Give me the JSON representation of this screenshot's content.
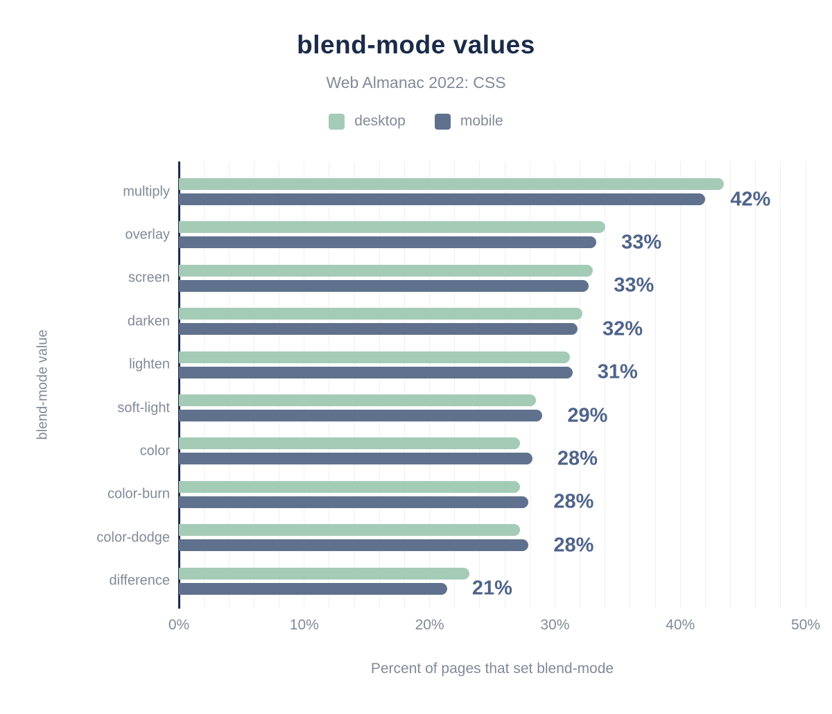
{
  "chart": {
    "title": "blend-mode values",
    "subtitle": "Web Almanac 2022: CSS",
    "x_axis_title": "Percent of pages that set blend-mode",
    "y_axis_title": "blend-mode value"
  },
  "legend": [
    {
      "name": "desktop",
      "color": "#a4cbb6"
    },
    {
      "name": "mobile",
      "color": "#5f718c"
    }
  ],
  "colors": {
    "desktop_bar": "#a4cbb6",
    "mobile_bar": "#5f718c",
    "title_text": "#1a2b49",
    "muted_text": "#828a97",
    "value_label_text": "#4f648a",
    "axis_line": "#1a2b49",
    "gridline": "#efefef",
    "background": "#ffffff"
  },
  "chart_data": {
    "type": "bar",
    "orientation": "horizontal",
    "title": "blend-mode values",
    "subtitle": "Web Almanac 2022: CSS",
    "xlabel": "Percent of pages that set blend-mode",
    "ylabel": "blend-mode value",
    "categories": [
      "multiply",
      "overlay",
      "screen",
      "darken",
      "lighten",
      "soft-light",
      "color",
      "color-burn",
      "color-dodge",
      "difference"
    ],
    "series": [
      {
        "name": "desktop",
        "color": "#a4cbb6",
        "values": [
          43.5,
          34.0,
          33.0,
          32.2,
          31.2,
          28.5,
          27.2,
          27.2,
          27.2,
          23.2
        ]
      },
      {
        "name": "mobile",
        "color": "#5f718c",
        "values": [
          42.0,
          33.3,
          32.7,
          31.8,
          31.4,
          29.0,
          28.2,
          27.9,
          27.9,
          21.4
        ]
      }
    ],
    "data_labels": [
      "42%",
      "33%",
      "33%",
      "32%",
      "31%",
      "29%",
      "28%",
      "28%",
      "28%",
      "21%"
    ],
    "data_labels_series": "mobile",
    "xlim": [
      0,
      50
    ],
    "x_ticks": [
      {
        "value": 0,
        "label": "0%"
      },
      {
        "value": 10,
        "label": "10%"
      },
      {
        "value": 20,
        "label": "20%"
      },
      {
        "value": 30,
        "label": "30%"
      },
      {
        "value": 40,
        "label": "40%"
      },
      {
        "value": 50,
        "label": "50%"
      }
    ],
    "gridline_step_percent": 2,
    "grid": true,
    "legend_position": "top"
  }
}
